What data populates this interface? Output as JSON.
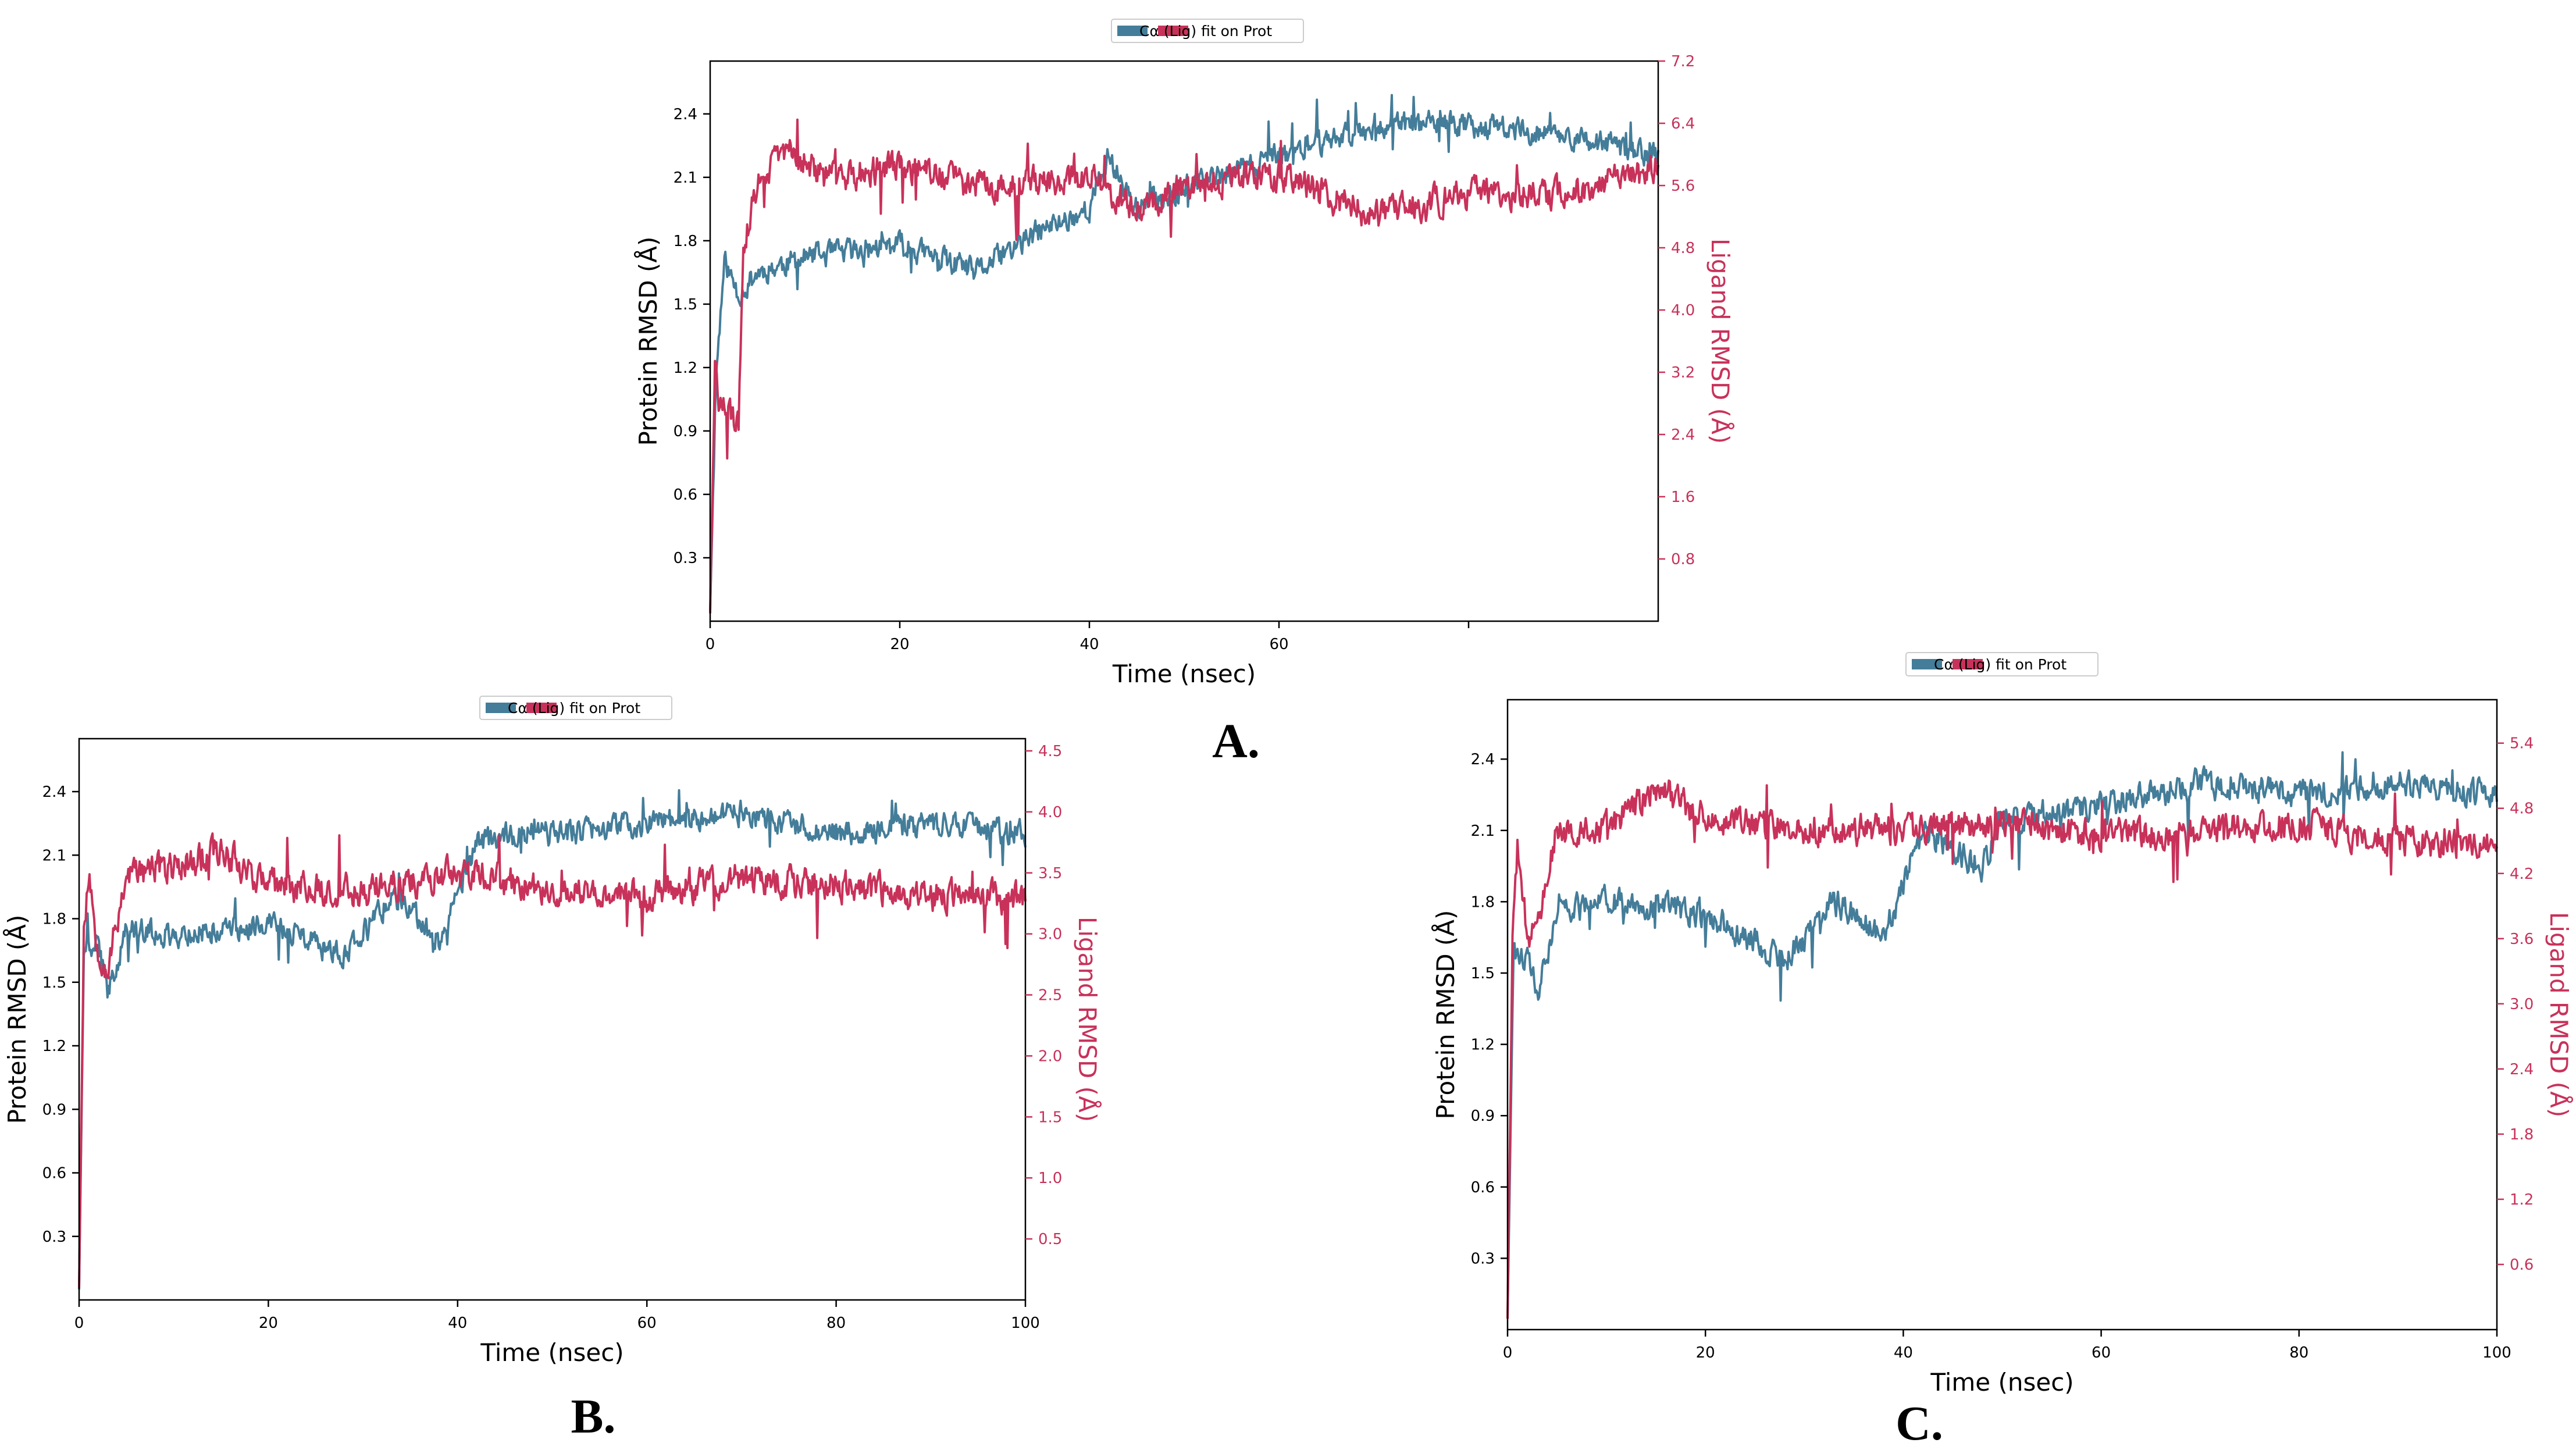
{
  "colors": {
    "protein": "#447d99",
    "ligand": "#c8325a",
    "axis": "#000000",
    "ligand_axis_text": "#c8325a"
  },
  "chart_data": [
    {
      "panel": "A.",
      "type": "line",
      "xlabel": "Time (nsec)",
      "ylabel_left": "Protein RMSD (Å)",
      "ylabel_right": "Ligand RMSD (Å)",
      "x_ticks": [
        "0",
        "20",
        "40",
        "60",
        ""
      ],
      "x_tick_values": [
        0,
        20,
        40,
        60,
        80
      ],
      "xlim": [
        0,
        100
      ],
      "y_left_ticks": [
        "0.3",
        "0.6",
        "0.9",
        "1.2",
        "1.5",
        "1.8",
        "2.1",
        "2.4"
      ],
      "y_left_lim": [
        0.0,
        2.65
      ],
      "y_right_ticks": [
        "0.8",
        "1.6",
        "2.4",
        "3.2",
        "4.0",
        "4.8",
        "5.6",
        "6.4",
        "7.2"
      ],
      "y_right_lim": [
        0.0,
        7.2
      ],
      "legend": {
        "placement": "top-center",
        "text": "Cα   (Lig) fit on Prot"
      },
      "series": [
        {
          "name": "Cα",
          "axis": "left",
          "profile": [
            [
              0,
              0.05
            ],
            [
              0.6,
              1.15
            ],
            [
              1.5,
              1.7
            ],
            [
              3,
              1.55
            ],
            [
              5,
              1.65
            ],
            [
              10,
              1.72
            ],
            [
              20,
              1.78
            ],
            [
              28,
              1.65
            ],
            [
              35,
              1.85
            ],
            [
              40,
              1.95
            ],
            [
              42,
              2.2
            ],
            [
              45,
              1.95
            ],
            [
              50,
              2.05
            ],
            [
              60,
              2.2
            ],
            [
              70,
              2.35
            ],
            [
              80,
              2.35
            ],
            [
              90,
              2.3
            ],
            [
              100,
              2.2
            ]
          ],
          "noise": 0.09,
          "seed": 11
        },
        {
          "name": "(Lig) fit on Prot",
          "axis": "right",
          "profile": [
            [
              0,
              0.1
            ],
            [
              0.5,
              3.2
            ],
            [
              1,
              2.8
            ],
            [
              3,
              2.5
            ],
            [
              3.5,
              4.8
            ],
            [
              5,
              5.6
            ],
            [
              8,
              6.1
            ],
            [
              12,
              5.7
            ],
            [
              20,
              5.85
            ],
            [
              30,
              5.6
            ],
            [
              40,
              5.7
            ],
            [
              45,
              5.3
            ],
            [
              50,
              5.6
            ],
            [
              60,
              5.75
            ],
            [
              70,
              5.2
            ],
            [
              80,
              5.5
            ],
            [
              90,
              5.5
            ],
            [
              100,
              5.8
            ]
          ],
          "noise": 0.3,
          "seed": 29
        }
      ]
    },
    {
      "panel": "B.",
      "type": "line",
      "xlabel": "Time (nsec)",
      "ylabel_left": "Protein RMSD (Å)",
      "ylabel_right": "Ligand RMSD (Å)",
      "x_ticks": [
        "0",
        "20",
        "40",
        "60",
        "80",
        "100"
      ],
      "x_tick_values": [
        0,
        20,
        40,
        60,
        80,
        100
      ],
      "xlim": [
        0,
        100
      ],
      "y_left_ticks": [
        "0.3",
        "0.6",
        "0.9",
        "1.2",
        "1.5",
        "1.8",
        "2.1",
        "2.4"
      ],
      "y_left_lim": [
        0.0,
        2.65
      ],
      "y_right_ticks": [
        "0.5",
        "1.0",
        "1.5",
        "2.0",
        "2.5",
        "3.0",
        "3.5",
        "4.0",
        "4.5"
      ],
      "y_right_lim": [
        0.0,
        4.6
      ],
      "legend": {
        "placement": "top-center",
        "text": "Cα   (Lig) fit on Prot"
      },
      "series": [
        {
          "name": "Cα",
          "axis": "left",
          "profile": [
            [
              0,
              0.05
            ],
            [
              0.5,
              1.65
            ],
            [
              2,
              1.7
            ],
            [
              3,
              1.45
            ],
            [
              5,
              1.75
            ],
            [
              10,
              1.72
            ],
            [
              20,
              1.78
            ],
            [
              28,
              1.62
            ],
            [
              33,
              1.9
            ],
            [
              38,
              1.7
            ],
            [
              42,
              2.15
            ],
            [
              45,
              2.2
            ],
            [
              50,
              2.2
            ],
            [
              60,
              2.25
            ],
            [
              70,
              2.3
            ],
            [
              80,
              2.2
            ],
            [
              90,
              2.25
            ],
            [
              100,
              2.2
            ]
          ],
          "noise": 0.09,
          "seed": 41
        },
        {
          "name": "(Lig) fit on Prot",
          "axis": "right",
          "profile": [
            [
              0,
              0.1
            ],
            [
              0.5,
              3.0
            ],
            [
              1,
              3.5
            ],
            [
              2,
              2.9
            ],
            [
              3,
              2.7
            ],
            [
              5,
              3.5
            ],
            [
              10,
              3.55
            ],
            [
              15,
              3.7
            ],
            [
              20,
              3.4
            ],
            [
              30,
              3.35
            ],
            [
              40,
              3.5
            ],
            [
              50,
              3.35
            ],
            [
              60,
              3.3
            ],
            [
              70,
              3.45
            ],
            [
              80,
              3.4
            ],
            [
              90,
              3.3
            ],
            [
              100,
              3.3
            ]
          ],
          "noise": 0.2,
          "seed": 53
        }
      ]
    },
    {
      "panel": "C.",
      "type": "line",
      "xlabel": "Time (nsec)",
      "ylabel_left": "Protein RMSD (Å)",
      "ylabel_right": "Ligand RMSD (Å)",
      "x_ticks": [
        "0",
        "20",
        "40",
        "60",
        "80",
        "100"
      ],
      "x_tick_values": [
        0,
        20,
        40,
        60,
        80,
        100
      ],
      "xlim": [
        0,
        100
      ],
      "y_left_ticks": [
        "0.3",
        "0.6",
        "0.9",
        "1.2",
        "1.5",
        "1.8",
        "2.1",
        "2.4"
      ],
      "y_left_lim": [
        0.0,
        2.65
      ],
      "y_right_ticks": [
        "0.6",
        "1.2",
        "1.8",
        "2.4",
        "3.0",
        "3.6",
        "4.2",
        "4.8",
        "5.4"
      ],
      "y_right_lim": [
        0.0,
        5.8
      ],
      "legend": {
        "placement": "top-center",
        "text": "Cα   (Lig) fit on Prot"
      },
      "series": [
        {
          "name": "Cα",
          "axis": "left",
          "profile": [
            [
              0,
              0.05
            ],
            [
              0.6,
              1.6
            ],
            [
              2,
              1.55
            ],
            [
              3,
              1.4
            ],
            [
              5,
              1.75
            ],
            [
              10,
              1.8
            ],
            [
              20,
              1.75
            ],
            [
              28,
              1.55
            ],
            [
              33,
              1.8
            ],
            [
              38,
              1.65
            ],
            [
              42,
              2.1
            ],
            [
              48,
              1.95
            ],
            [
              50,
              2.15
            ],
            [
              60,
              2.2
            ],
            [
              70,
              2.3
            ],
            [
              80,
              2.25
            ],
            [
              90,
              2.3
            ],
            [
              100,
              2.25
            ]
          ],
          "noise": 0.09,
          "seed": 61
        },
        {
          "name": "(Lig) fit on Prot",
          "axis": "right",
          "profile": [
            [
              0,
              0.1
            ],
            [
              0.5,
              3.5
            ],
            [
              1,
              4.4
            ],
            [
              2,
              3.6
            ],
            [
              3,
              3.7
            ],
            [
              5,
              4.6
            ],
            [
              10,
              4.6
            ],
            [
              15,
              5.0
            ],
            [
              20,
              4.7
            ],
            [
              30,
              4.6
            ],
            [
              40,
              4.6
            ],
            [
              50,
              4.65
            ],
            [
              60,
              4.55
            ],
            [
              70,
              4.6
            ],
            [
              80,
              4.65
            ],
            [
              90,
              4.5
            ],
            [
              100,
              4.45
            ]
          ],
          "noise": 0.22,
          "seed": 73
        }
      ]
    }
  ]
}
